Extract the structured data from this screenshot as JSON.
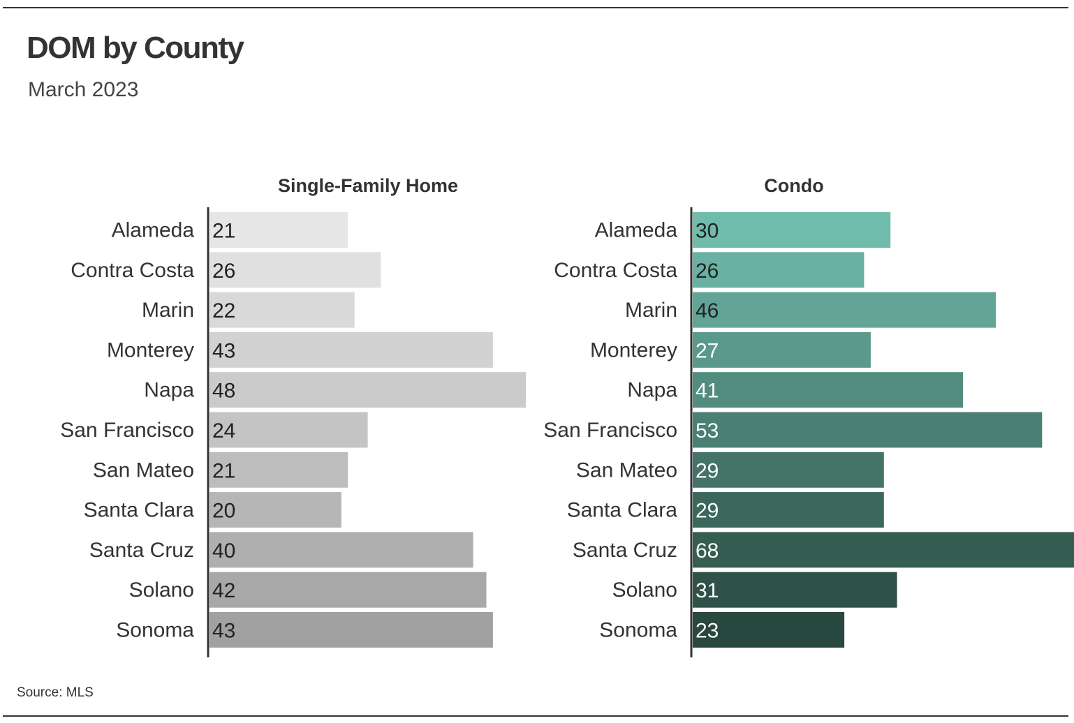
{
  "header": {
    "title": "DOM by County",
    "subtitle": "March 2023"
  },
  "footer": {
    "source": "Source: MLS"
  },
  "chart_data": [
    {
      "type": "bar",
      "orientation": "horizontal",
      "title": "Single-Family Home",
      "categories": [
        "Alameda",
        "Contra Costa",
        "Marin",
        "Monterey",
        "Napa",
        "San Francisco",
        "San Mateo",
        "Santa Clara",
        "Santa Cruz",
        "Solano",
        "Sonoma"
      ],
      "values": [
        21,
        26,
        22,
        43,
        48,
        24,
        21,
        20,
        40,
        42,
        43
      ],
      "colors": [
        "#e6e6e6",
        "#e0e0e0",
        "#d9d9d9",
        "#d2d2d2",
        "#cbcbcb",
        "#c4c4c4",
        "#bdbdbd",
        "#b6b6b6",
        "#afafaf",
        "#a8a8a8",
        "#a1a1a1"
      ],
      "label_colors": [
        "#222222",
        "#222222",
        "#222222",
        "#222222",
        "#222222",
        "#222222",
        "#222222",
        "#222222",
        "#222222",
        "#222222",
        "#222222"
      ],
      "xlim": [
        0,
        68
      ],
      "grid": false,
      "legend": "none"
    },
    {
      "type": "bar",
      "orientation": "horizontal",
      "title": "Condo",
      "categories": [
        "Alameda",
        "Contra Costa",
        "Marin",
        "Monterey",
        "Napa",
        "San Francisco",
        "San Mateo",
        "Santa Clara",
        "Santa Cruz",
        "Solano",
        "Sonoma"
      ],
      "values": [
        30,
        26,
        46,
        27,
        41,
        53,
        29,
        29,
        68,
        31,
        23
      ],
      "colors": [
        "#6fbcac",
        "#69b1a2",
        "#62a596",
        "#5a998b",
        "#528c7f",
        "#4a7f73",
        "#437467",
        "#3c685c",
        "#355d52",
        "#2f5248",
        "#29483f"
      ],
      "label_colors": [
        "#222222",
        "#222222",
        "#222222",
        "#ffffff",
        "#ffffff",
        "#ffffff",
        "#ffffff",
        "#ffffff",
        "#ffffff",
        "#ffffff",
        "#ffffff"
      ],
      "xlim": [
        0,
        68
      ],
      "grid": false,
      "legend": "none"
    }
  ]
}
